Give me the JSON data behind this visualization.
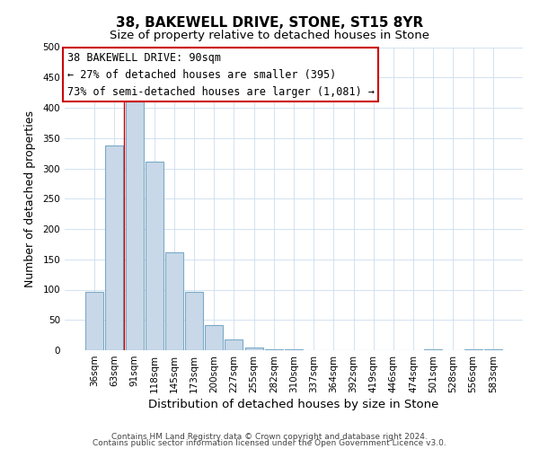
{
  "title": "38, BAKEWELL DRIVE, STONE, ST15 8YR",
  "subtitle": "Size of property relative to detached houses in Stone",
  "xlabel": "Distribution of detached houses by size in Stone",
  "ylabel": "Number of detached properties",
  "bar_labels": [
    "36sqm",
    "63sqm",
    "91sqm",
    "118sqm",
    "145sqm",
    "173sqm",
    "200sqm",
    "227sqm",
    "255sqm",
    "282sqm",
    "310sqm",
    "337sqm",
    "364sqm",
    "392sqm",
    "419sqm",
    "446sqm",
    "474sqm",
    "501sqm",
    "528sqm",
    "556sqm",
    "583sqm"
  ],
  "bar_values": [
    97,
    338,
    410,
    311,
    162,
    96,
    42,
    18,
    5,
    2,
    1,
    0,
    0,
    0,
    0,
    0,
    0,
    2,
    0,
    2,
    2
  ],
  "bar_color": "#c8d8e8",
  "bar_edge_color": "#7aaac8",
  "property_line_color": "#cc0000",
  "annotation_line1": "38 BAKEWELL DRIVE: 90sqm",
  "annotation_line2": "← 27% of detached houses are smaller (395)",
  "annotation_line3": "73% of semi-detached houses are larger (1,081) →",
  "ylim": [
    0,
    500
  ],
  "yticks": [
    0,
    50,
    100,
    150,
    200,
    250,
    300,
    350,
    400,
    450,
    500
  ],
  "footer_line1": "Contains HM Land Registry data © Crown copyright and database right 2024.",
  "footer_line2": "Contains public sector information licensed under the Open Government Licence v3.0.",
  "title_fontsize": 11,
  "subtitle_fontsize": 9.5,
  "xlabel_fontsize": 9.5,
  "ylabel_fontsize": 9,
  "tick_fontsize": 7.5,
  "annotation_fontsize": 8.5,
  "footer_fontsize": 6.5,
  "background_color": "#ffffff",
  "grid_color": "#ccddee"
}
